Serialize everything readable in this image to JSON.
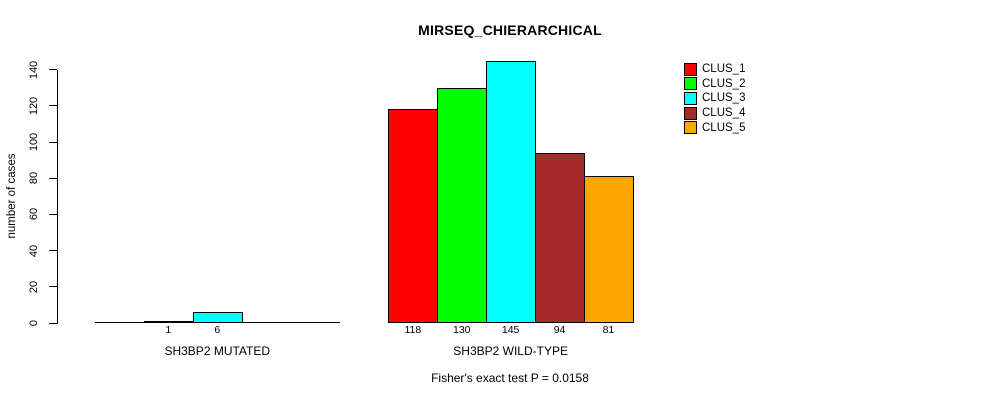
{
  "title": "MIRSEQ_CHIERARCHICAL",
  "chart_data": {
    "type": "bar",
    "title": "MIRSEQ_CHIERARCHICAL",
    "ylabel": "number of cases",
    "xlabel": "",
    "ylim": [
      0,
      145
    ],
    "y_ticks": [
      0,
      20,
      40,
      60,
      80,
      100,
      120,
      140
    ],
    "grid": false,
    "legend_position": "top-right",
    "legend": [
      {
        "label": "CLUS_1",
        "color": "#FF0000"
      },
      {
        "label": "CLUS_2",
        "color": "#00FF00"
      },
      {
        "label": "CLUS_3",
        "color": "#00FFFF"
      },
      {
        "label": "CLUS_4",
        "color": "#A52A2A"
      },
      {
        "label": "CLUS_5",
        "color": "#FFA500"
      }
    ],
    "groups": [
      {
        "label": "SH3BP2 MUTATED",
        "values": [
          0,
          1,
          6,
          0,
          0
        ],
        "value_labels": [
          "",
          "1",
          "6",
          "",
          ""
        ]
      },
      {
        "label": "SH3BP2 WILD-TYPE",
        "values": [
          118,
          130,
          145,
          94,
          81
        ],
        "value_labels": [
          "118",
          "130",
          "145",
          "94",
          "81"
        ]
      }
    ],
    "annotation": "Fisher's exact test P = 0.0158"
  }
}
